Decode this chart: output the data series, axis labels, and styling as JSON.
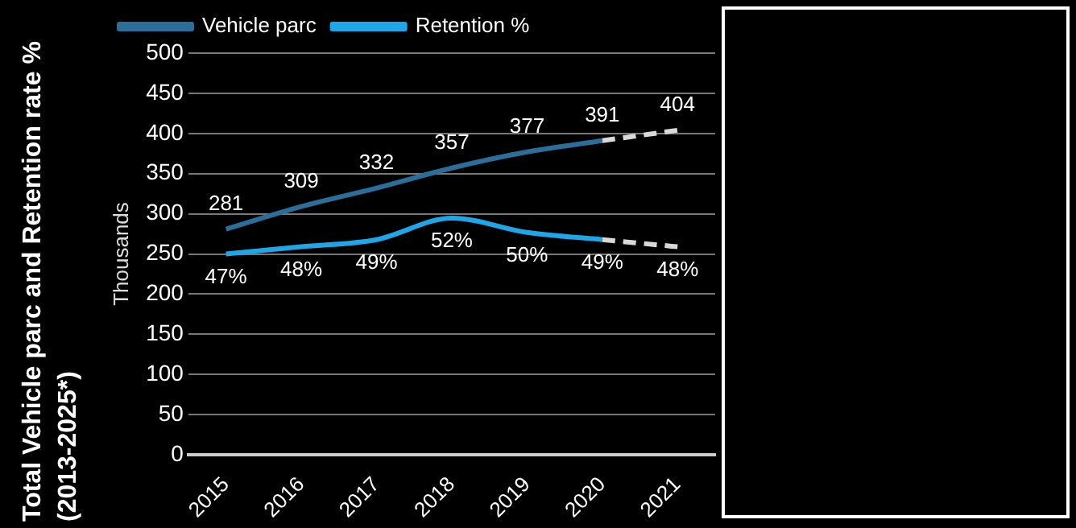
{
  "chart_data": {
    "type": "line",
    "title": "Total Vehicle parc and Retention rate % (2013-2025*)",
    "ylabel": "Thousands",
    "categories": [
      "2015",
      "2016",
      "2017",
      "2018",
      "2019",
      "2020",
      "2021"
    ],
    "series": [
      {
        "name": "Vehicle parc",
        "color": "#2b6e99",
        "values": [
          281,
          309,
          332,
          357,
          377,
          391,
          null
        ],
        "value_labels": [
          "281",
          "309",
          "332",
          "357",
          "377",
          "391",
          null
        ]
      },
      {
        "name": "Retention %",
        "color": "#1ea6e6",
        "axis": "y2",
        "values": [
          47,
          48,
          49,
          52,
          50,
          49,
          null
        ],
        "value_labels": [
          "47%",
          "48%",
          "49%",
          "52%",
          "50%",
          "49%",
          null
        ]
      },
      {
        "color": "#d9d9d9",
        "line_style": "dashed",
        "values": [
          null,
          null,
          null,
          null,
          null,
          391,
          404
        ],
        "value_labels": [
          null,
          null,
          null,
          null,
          null,
          null,
          "404"
        ]
      },
      {
        "color": "#d9d9d9",
        "line_style": "dashed",
        "axis": "y2",
        "values": [
          null,
          null,
          null,
          null,
          null,
          49,
          48
        ],
        "value_labels": [
          null,
          null,
          null,
          null,
          null,
          null,
          "48%"
        ]
      }
    ],
    "ylim": [
      0,
      500
    ],
    "yticks": [
      0,
      50,
      100,
      150,
      200,
      250,
      300,
      350,
      400,
      450,
      500
    ],
    "y2lim": [
      19,
      75
    ],
    "grid": "y",
    "legend": "top",
    "marker": "none"
  }
}
